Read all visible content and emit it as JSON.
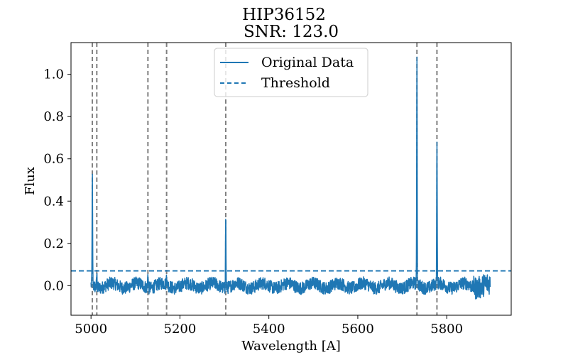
{
  "chart_data": {
    "type": "line",
    "title": "HIP36152",
    "subtitle": "SNR: 123.0",
    "xlabel": "Wavelength [A]",
    "ylabel": "Flux",
    "xlim": [
      4955,
      5945
    ],
    "ylim": [
      -0.14,
      1.15
    ],
    "xticks": [
      5000,
      5200,
      5400,
      5600,
      5800
    ],
    "yticks": [
      0.0,
      0.2,
      0.4,
      0.6,
      0.8,
      1.0
    ],
    "ytick_labels": [
      "0.0",
      "0.2",
      "0.4",
      "0.6",
      "0.8",
      "1.0"
    ],
    "grid": false,
    "legend_position": "top-center",
    "series": [
      {
        "name": "Original Data",
        "color": "#1f77b4",
        "style": "solid",
        "x_range": [
          5000,
          5898
        ],
        "baseline": 0.0,
        "noise_amplitude": 0.03,
        "peaks": [
          {
            "x": 5003,
            "y": 0.52
          },
          {
            "x": 5013,
            "y": 0.07
          },
          {
            "x": 5128,
            "y": 0.08
          },
          {
            "x": 5170,
            "y": 0.06
          },
          {
            "x": 5303,
            "y": 0.35
          },
          {
            "x": 5733,
            "y": 1.1
          },
          {
            "x": 5778,
            "y": 0.7
          }
        ]
      },
      {
        "name": "Threshold",
        "color": "#1f77b4",
        "style": "dashed",
        "y": 0.07
      }
    ],
    "vlines": {
      "color": "#808080",
      "style": "dashed",
      "x": [
        5003,
        5013,
        5128,
        5170,
        5303,
        5733,
        5778
      ]
    }
  }
}
